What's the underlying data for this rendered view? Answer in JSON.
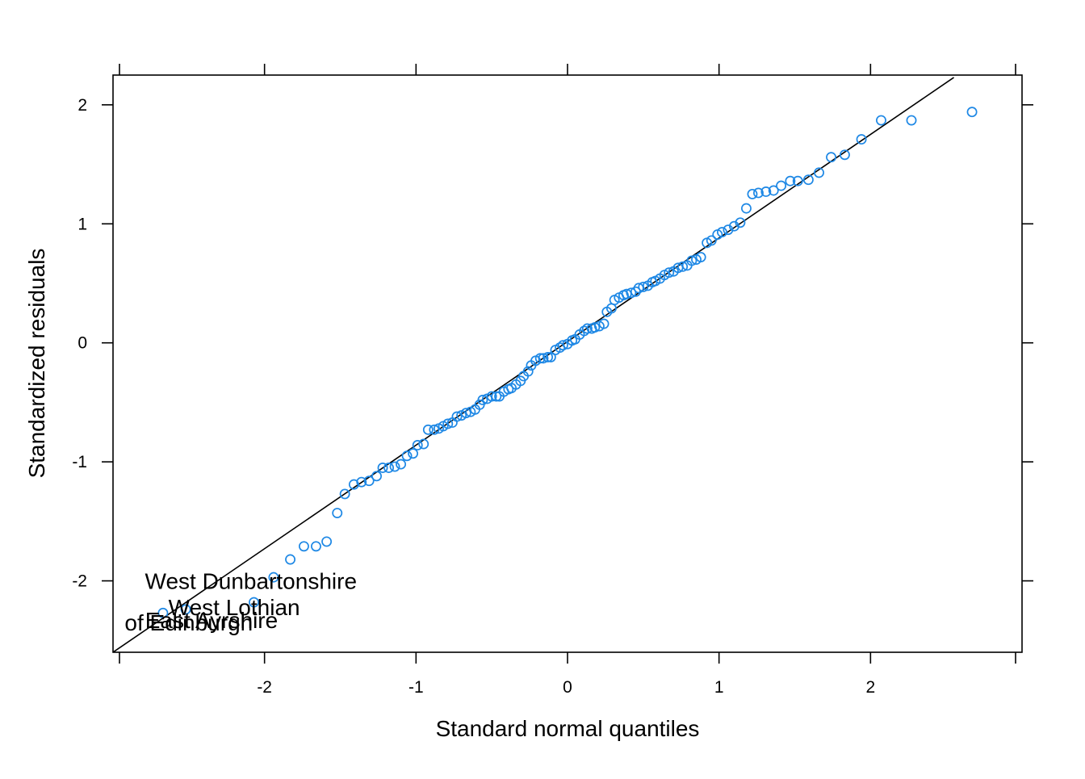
{
  "chart_data": {
    "type": "scatter",
    "title": "",
    "xlabel": "Standard normal quantiles",
    "ylabel": "Standardized residuals",
    "xlim": [
      -3.0,
      3.0
    ],
    "ylim": [
      -2.6,
      2.25
    ],
    "xticks": [
      -2,
      -1,
      0,
      1,
      2
    ],
    "yticks": [
      -2,
      -1,
      0,
      1,
      2
    ],
    "xtick_labels": [
      "-2",
      "-1",
      "0",
      "1",
      "2"
    ],
    "ytick_labels": [
      "-2",
      "-1",
      "0",
      "1",
      "2"
    ],
    "grid": false,
    "point_color": "#1E88E5",
    "reference_line": {
      "x1": -3.0,
      "y1": -2.6,
      "x2": 2.55,
      "y2": 2.23,
      "color": "#000000"
    },
    "points": [
      [
        -2.67,
        -2.27
      ],
      [
        -2.52,
        -2.24
      ],
      [
        -2.07,
        -2.18
      ],
      [
        -1.94,
        -1.97
      ],
      [
        -1.83,
        -1.82
      ],
      [
        -1.74,
        -1.71
      ],
      [
        -1.66,
        -1.71
      ],
      [
        -1.59,
        -1.67
      ],
      [
        -1.52,
        -1.43
      ],
      [
        -1.47,
        -1.27
      ],
      [
        -1.41,
        -1.19
      ],
      [
        -1.36,
        -1.17
      ],
      [
        -1.31,
        -1.16
      ],
      [
        -1.26,
        -1.12
      ],
      [
        -1.22,
        -1.05
      ],
      [
        -1.18,
        -1.05
      ],
      [
        -1.14,
        -1.04
      ],
      [
        -1.1,
        -1.02
      ],
      [
        -1.06,
        -0.95
      ],
      [
        -1.02,
        -0.93
      ],
      [
        -0.99,
        -0.86
      ],
      [
        -0.95,
        -0.85
      ],
      [
        -0.92,
        -0.73
      ],
      [
        -0.88,
        -0.73
      ],
      [
        -0.85,
        -0.72
      ],
      [
        -0.82,
        -0.7
      ],
      [
        -0.79,
        -0.68
      ],
      [
        -0.76,
        -0.67
      ],
      [
        -0.73,
        -0.62
      ],
      [
        -0.7,
        -0.61
      ],
      [
        -0.67,
        -0.59
      ],
      [
        -0.64,
        -0.58
      ],
      [
        -0.61,
        -0.56
      ],
      [
        -0.58,
        -0.52
      ],
      [
        -0.56,
        -0.48
      ],
      [
        -0.53,
        -0.47
      ],
      [
        -0.5,
        -0.45
      ],
      [
        -0.47,
        -0.45
      ],
      [
        -0.45,
        -0.45
      ],
      [
        -0.42,
        -0.41
      ],
      [
        -0.39,
        -0.39
      ],
      [
        -0.37,
        -0.38
      ],
      [
        -0.34,
        -0.35
      ],
      [
        -0.31,
        -0.32
      ],
      [
        -0.29,
        -0.28
      ],
      [
        -0.26,
        -0.24
      ],
      [
        -0.24,
        -0.19
      ],
      [
        -0.21,
        -0.15
      ],
      [
        -0.18,
        -0.13
      ],
      [
        -0.16,
        -0.13
      ],
      [
        -0.13,
        -0.12
      ],
      [
        -0.11,
        -0.12
      ],
      [
        -0.08,
        -0.06
      ],
      [
        -0.05,
        -0.04
      ],
      [
        -0.03,
        -0.02
      ],
      [
        0.0,
        -0.01
      ],
      [
        0.03,
        0.02
      ],
      [
        0.05,
        0.03
      ],
      [
        0.08,
        0.07
      ],
      [
        0.11,
        0.1
      ],
      [
        0.13,
        0.12
      ],
      [
        0.16,
        0.12
      ],
      [
        0.18,
        0.13
      ],
      [
        0.21,
        0.14
      ],
      [
        0.24,
        0.16
      ],
      [
        0.26,
        0.26
      ],
      [
        0.29,
        0.29
      ],
      [
        0.31,
        0.36
      ],
      [
        0.34,
        0.38
      ],
      [
        0.37,
        0.4
      ],
      [
        0.39,
        0.41
      ],
      [
        0.42,
        0.42
      ],
      [
        0.45,
        0.43
      ],
      [
        0.47,
        0.46
      ],
      [
        0.5,
        0.47
      ],
      [
        0.53,
        0.48
      ],
      [
        0.56,
        0.51
      ],
      [
        0.58,
        0.52
      ],
      [
        0.61,
        0.54
      ],
      [
        0.64,
        0.57
      ],
      [
        0.67,
        0.59
      ],
      [
        0.7,
        0.6
      ],
      [
        0.73,
        0.63
      ],
      [
        0.76,
        0.64
      ],
      [
        0.79,
        0.65
      ],
      [
        0.82,
        0.69
      ],
      [
        0.85,
        0.7
      ],
      [
        0.88,
        0.72
      ],
      [
        0.92,
        0.84
      ],
      [
        0.95,
        0.86
      ],
      [
        0.99,
        0.91
      ],
      [
        1.02,
        0.93
      ],
      [
        1.06,
        0.95
      ],
      [
        1.1,
        0.98
      ],
      [
        1.14,
        1.01
      ],
      [
        1.18,
        1.13
      ],
      [
        1.22,
        1.25
      ],
      [
        1.26,
        1.26
      ],
      [
        1.31,
        1.27
      ],
      [
        1.36,
        1.28
      ],
      [
        1.41,
        1.32
      ],
      [
        1.47,
        1.36
      ],
      [
        1.52,
        1.36
      ],
      [
        1.59,
        1.37
      ],
      [
        1.66,
        1.43
      ],
      [
        1.74,
        1.56
      ],
      [
        1.83,
        1.58
      ],
      [
        1.94,
        1.71
      ],
      [
        2.07,
        1.87
      ],
      [
        2.27,
        1.87
      ],
      [
        2.67,
        1.94
      ]
    ],
    "annotations": [
      {
        "text": "West Dunbartonshire",
        "x": -2.09,
        "y": -2.0
      },
      {
        "text": "West Lothian",
        "x": -2.2,
        "y": -2.22
      },
      {
        "text": "East Ayrshire",
        "x": -2.35,
        "y": -2.33
      },
      {
        "text": "of Edinburgh",
        "x": -2.5,
        "y": -2.35
      }
    ]
  }
}
